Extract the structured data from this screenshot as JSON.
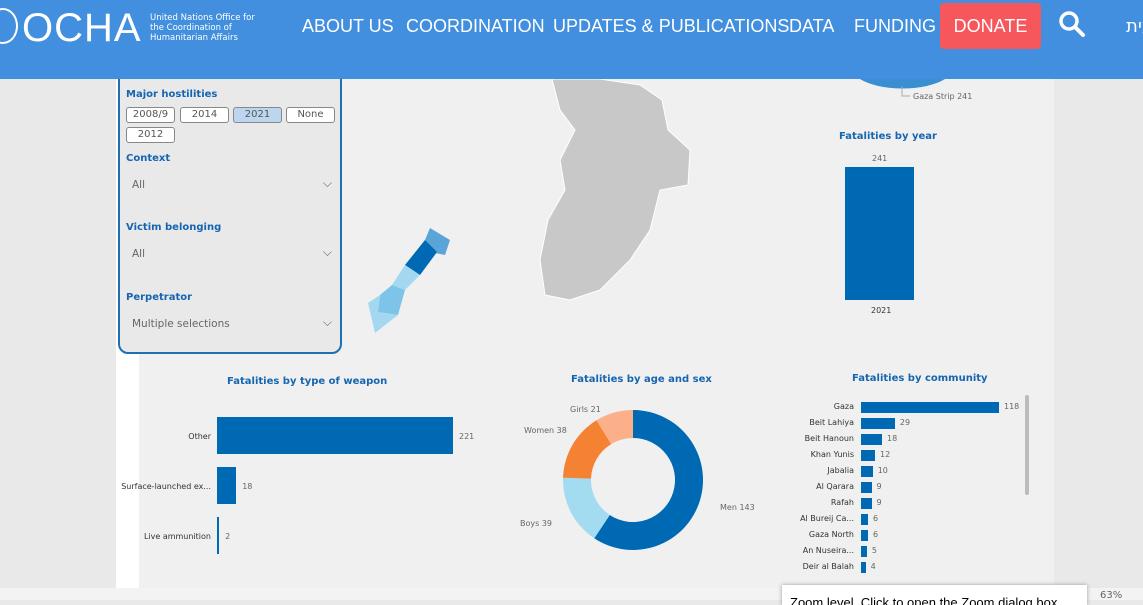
{
  "header": {
    "logo": "OCHA",
    "logo_sub": "United Nations Office for the Coordination of Humanitarian Affairs",
    "nav": [
      "ABOUT US",
      "COORDINATION",
      "UPDATES & PUBLICATIONS",
      "DATA",
      "FUNDING"
    ],
    "donate": "DONATE",
    "lang": "עית"
  },
  "filters": {
    "major_hostilities": {
      "label": "Major hostilities",
      "options": [
        "2008/9",
        "2014",
        "2021",
        "None",
        "2012"
      ],
      "selected": "2021"
    },
    "context": {
      "label": "Context",
      "value": "All"
    },
    "victim": {
      "label": "Victim belonging",
      "value": "All"
    },
    "perpetrator": {
      "label": "Perpetrator",
      "value": "Multiple selections"
    }
  },
  "colors": {
    "accent": "#0069b4",
    "header": "#418fde",
    "donate": "#f6575c"
  },
  "chart_data": [
    {
      "type": "pie",
      "title": "",
      "categories": [
        "Gaza Strip"
      ],
      "values": [
        241
      ],
      "labels": [
        "Gaza Strip 241"
      ]
    },
    {
      "type": "bar",
      "title": "Fatalities by year",
      "categories": [
        "2021"
      ],
      "values": [
        241
      ]
    },
    {
      "type": "bar",
      "orientation": "horizontal",
      "title": "Fatalities by type of weapon",
      "categories": [
        "Other",
        "Surface-launched ex...",
        "Live ammunition"
      ],
      "values": [
        221,
        18,
        2
      ]
    },
    {
      "type": "pie",
      "title": "Fatalities by age and sex",
      "categories": [
        "Men",
        "Boys",
        "Women",
        "Girls"
      ],
      "values": [
        143,
        39,
        38,
        21
      ],
      "colors": [
        "#0069b4",
        "#a3dcf0",
        "#f58233",
        "#fbb08a"
      ]
    },
    {
      "type": "bar",
      "orientation": "horizontal",
      "title": "Fatalities by community",
      "categories": [
        "Gaza",
        "Beit Lahiya",
        "Beit Hanoun",
        "Khan Yunis",
        "Jabalia",
        "Al Qarara",
        "Rafah",
        "Al Bureij Ca...",
        "Gaza North",
        "An Nuseira...",
        "Deir al Balah"
      ],
      "values": [
        118,
        29,
        18,
        12,
        10,
        9,
        9,
        6,
        6,
        5,
        4
      ]
    }
  ],
  "status": {
    "tooltip": "Zoom level. Click to open the Zoom dialog box",
    "zoom": "63%"
  }
}
